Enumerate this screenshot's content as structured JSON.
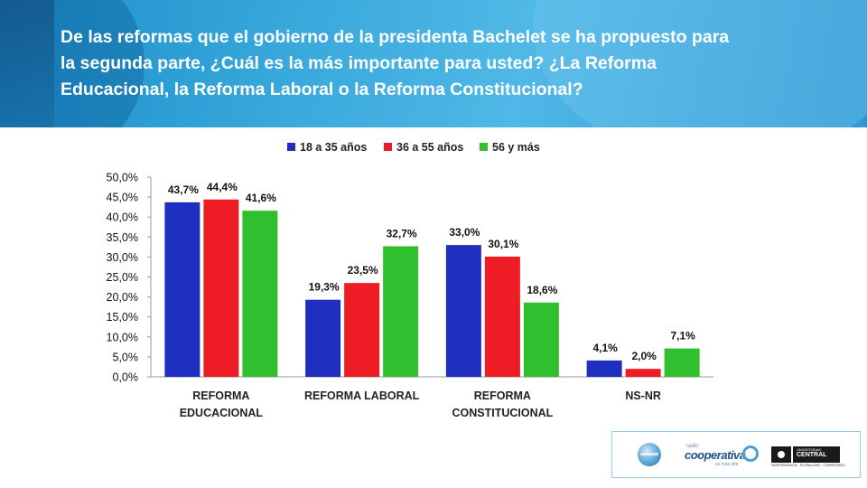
{
  "title": "De las reformas que el gobierno de la presidenta Bachelet se ha propuesto para la segunda parte, ¿Cuál es la más importante para usted? ¿La Reforma Educacional, la Reforma Laboral o la Reforma Constitucional?",
  "chart_data": {
    "type": "bar",
    "categories": [
      [
        "REFORMA",
        "EDUCACIONAL"
      ],
      [
        "REFORMA LABORAL"
      ],
      [
        "REFORMA",
        "CONSTITUCIONAL"
      ],
      [
        "NS-NR"
      ]
    ],
    "series": [
      {
        "name": "18 a 35 años",
        "color": "#1f2fbf",
        "values": [
          43.7,
          19.3,
          33.0,
          4.1
        ],
        "labels": [
          "43,7%",
          "19,3%",
          "33,0%",
          "4,1%"
        ]
      },
      {
        "name": "36 a 55 años",
        "color": "#ee1c24",
        "values": [
          44.4,
          23.5,
          30.1,
          2.0
        ],
        "labels": [
          "44,4%",
          "23,5%",
          "30,1%",
          "2,0%"
        ]
      },
      {
        "name": "56 y más",
        "color": "#2fbf2f",
        "values": [
          41.6,
          32.7,
          18.6,
          7.1
        ],
        "labels": [
          "41,6%",
          "32,7%",
          "18,6%",
          "7,1%"
        ]
      }
    ],
    "yticks": [
      "0,0%",
      "5,0%",
      "10,0%",
      "15,0%",
      "20,0%",
      "25,0%",
      "30,0%",
      "35,0%",
      "40,0%",
      "45,0%",
      "50,0%"
    ],
    "ylim": [
      0,
      50
    ],
    "legend_position": "top",
    "grid": false
  },
  "logos": {
    "cooperativa_small": "radio",
    "cooperativa_main": "cooperativa",
    "cooperativa_sub": "se más allá",
    "uc_small": "UNIVERSIDAD",
    "uc_main": "CENTRAL",
    "uc_tag": "INDEPENDENCIA · PLURALISMO · COMPROMISO"
  }
}
